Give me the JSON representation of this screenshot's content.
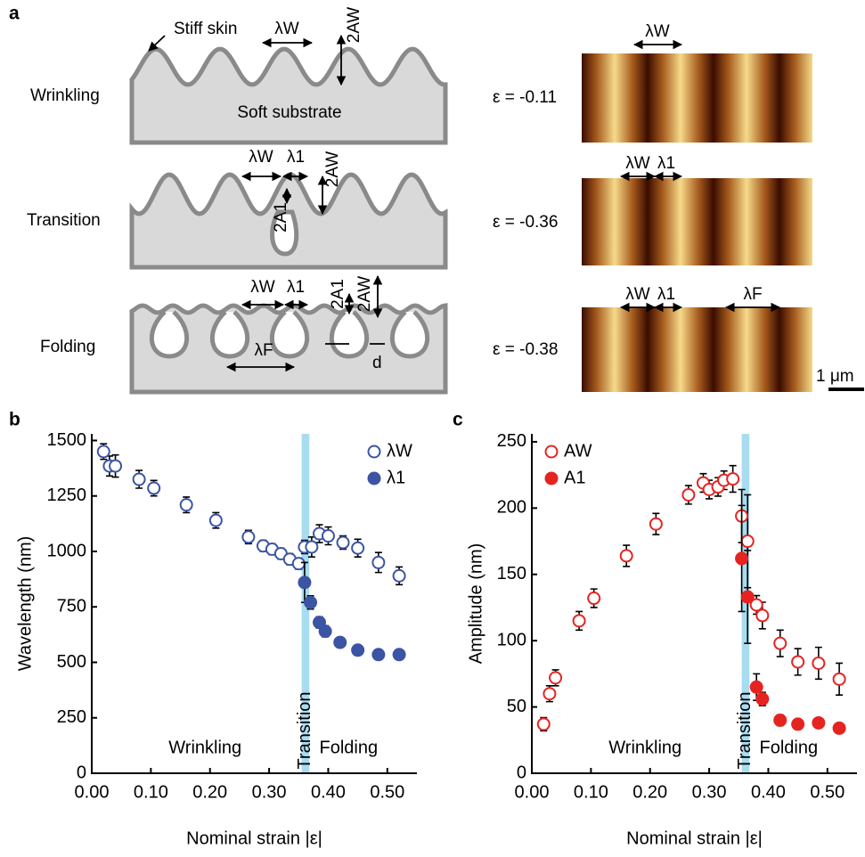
{
  "panel_a": {
    "label": "a",
    "stiff_skin": "Stiff skin",
    "soft_substrate": "Soft substrate",
    "lambda_w": "λW",
    "lambda_1": "λ1",
    "lambda_f": "λF",
    "two_a_w": "2AW",
    "two_a_1": "2A1",
    "d": "d",
    "rows": [
      "Wrinkling",
      "Transition",
      "Folding"
    ],
    "strains": [
      "ε = -0.11",
      "ε = -0.36",
      "ε = -0.38"
    ],
    "scale_bar": "1 μm"
  },
  "chart_data": [
    {
      "type": "scatter",
      "panel": "b",
      "x_label": "Nominal strain |ε|",
      "y_label": "Wavelength (nm)",
      "xlim": [
        0,
        0.55
      ],
      "ylim": [
        0,
        1530
      ],
      "xticks": [
        {
          "value": 0,
          "label": "0.00"
        },
        {
          "value": 0.1,
          "label": "0.10"
        },
        {
          "value": 0.2,
          "label": "0.20"
        },
        {
          "value": 0.3,
          "label": "0.30"
        },
        {
          "value": 0.4,
          "label": "0.40"
        },
        {
          "value": 0.5,
          "label": "0.50"
        }
      ],
      "yticks": [
        0,
        250,
        500,
        750,
        1000,
        1250,
        1500
      ],
      "highlight_x": [
        0.355,
        0.368
      ],
      "annotations": [
        "Wrinkling",
        "Transition",
        "Folding"
      ],
      "legend": "upper right",
      "series": [
        {
          "name": "λW",
          "color": "#3b54a4",
          "filled": false,
          "x": [
            0.02,
            0.03,
            0.04,
            0.08,
            0.105,
            0.16,
            0.21,
            0.265,
            0.29,
            0.305,
            0.32,
            0.335,
            0.35,
            0.36,
            0.372,
            0.385,
            0.4,
            0.425,
            0.45,
            0.485,
            0.52
          ],
          "values": [
            1450,
            1385,
            1385,
            1325,
            1285,
            1210,
            1140,
            1065,
            1025,
            1010,
            990,
            965,
            945,
            1020,
            1020,
            1080,
            1070,
            1040,
            1015,
            950,
            890
          ],
          "errors": [
            35,
            45,
            50,
            40,
            35,
            35,
            35,
            30,
            25,
            25,
            25,
            25,
            25,
            30,
            45,
            40,
            40,
            30,
            40,
            45,
            40
          ]
        },
        {
          "name": "λ1",
          "color": "#3b54a4",
          "filled": true,
          "x": [
            0.36,
            0.37,
            0.385,
            0.395,
            0.42,
            0.45,
            0.485,
            0.52
          ],
          "values": [
            860,
            770,
            680,
            640,
            590,
            555,
            535,
            535
          ],
          "errors": [
            90,
            30,
            25,
            25,
            20,
            15,
            10,
            10
          ]
        }
      ]
    },
    {
      "type": "scatter",
      "panel": "c",
      "x_label": "Nominal strain |ε|",
      "y_label": "Amplitude (nm)",
      "xlim": [
        0,
        0.55
      ],
      "ylim": [
        0,
        256
      ],
      "xticks": [
        {
          "value": 0,
          "label": "0.00"
        },
        {
          "value": 0.1,
          "label": "0.10"
        },
        {
          "value": 0.2,
          "label": "0.20"
        },
        {
          "value": 0.3,
          "label": "0.30"
        },
        {
          "value": 0.4,
          "label": "0.40"
        },
        {
          "value": 0.5,
          "label": "0.50"
        }
      ],
      "yticks": [
        0,
        50,
        100,
        150,
        200,
        250
      ],
      "highlight_x": [
        0.355,
        0.368
      ],
      "annotations": [
        "Wrinkling",
        "Transition",
        "Folding"
      ],
      "legend": "upper left",
      "series": [
        {
          "name": "AW",
          "color": "#e52421",
          "filled": false,
          "x": [
            0.02,
            0.03,
            0.04,
            0.08,
            0.105,
            0.16,
            0.21,
            0.265,
            0.29,
            0.3,
            0.315,
            0.325,
            0.34,
            0.355,
            0.365,
            0.38,
            0.39,
            0.42,
            0.45,
            0.485,
            0.52
          ],
          "values": [
            37,
            60,
            72,
            115,
            132,
            164,
            188,
            210,
            219,
            214,
            216,
            221,
            222,
            194,
            175,
            127,
            119,
            98,
            84,
            83,
            71
          ],
          "errors": [
            5,
            6,
            6,
            7,
            7,
            8,
            8,
            7,
            7,
            7,
            7,
            7,
            10,
            20,
            35,
            7,
            10,
            10,
            10,
            12,
            12
          ]
        },
        {
          "name": "A1",
          "color": "#e52421",
          "filled": true,
          "x": [
            0.355,
            0.365,
            0.38,
            0.39,
            0.42,
            0.45,
            0.485,
            0.52
          ],
          "values": [
            162,
            133,
            65,
            56,
            40,
            37,
            38,
            34
          ],
          "errors": [
            40,
            35,
            10,
            5,
            4,
            2,
            2,
            2
          ]
        }
      ]
    }
  ]
}
